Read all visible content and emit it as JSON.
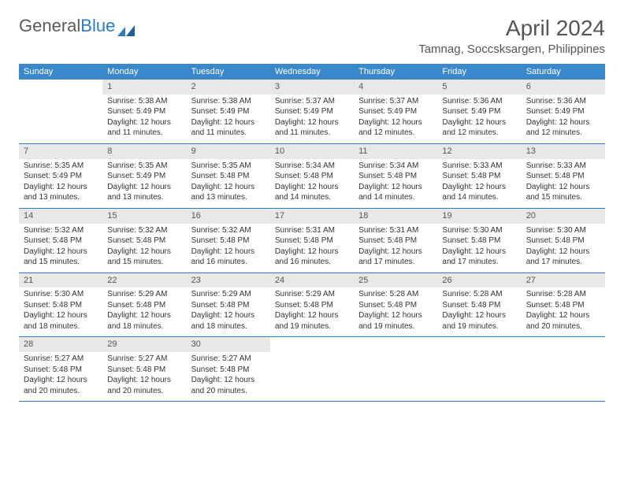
{
  "logo": {
    "text1": "General",
    "text2": "Blue"
  },
  "title": {
    "month": "April 2024",
    "location": "Tamnag, Soccsksargen, Philippines"
  },
  "colors": {
    "header_bg": "#3a88c9",
    "header_text": "#ffffff",
    "daynum_bg": "#e8e8e8",
    "week_border": "#2a7bbf",
    "logo_gray": "#5a5a5a",
    "logo_blue": "#2a7bbf",
    "text": "#333333",
    "title_text": "#555555"
  },
  "weekdays": [
    "Sunday",
    "Monday",
    "Tuesday",
    "Wednesday",
    "Thursday",
    "Friday",
    "Saturday"
  ],
  "weeks": [
    [
      null,
      {
        "n": "1",
        "sr": "Sunrise: 5:38 AM",
        "ss": "Sunset: 5:49 PM",
        "d1": "Daylight: 12 hours",
        "d2": "and 11 minutes."
      },
      {
        "n": "2",
        "sr": "Sunrise: 5:38 AM",
        "ss": "Sunset: 5:49 PM",
        "d1": "Daylight: 12 hours",
        "d2": "and 11 minutes."
      },
      {
        "n": "3",
        "sr": "Sunrise: 5:37 AM",
        "ss": "Sunset: 5:49 PM",
        "d1": "Daylight: 12 hours",
        "d2": "and 11 minutes."
      },
      {
        "n": "4",
        "sr": "Sunrise: 5:37 AM",
        "ss": "Sunset: 5:49 PM",
        "d1": "Daylight: 12 hours",
        "d2": "and 12 minutes."
      },
      {
        "n": "5",
        "sr": "Sunrise: 5:36 AM",
        "ss": "Sunset: 5:49 PM",
        "d1": "Daylight: 12 hours",
        "d2": "and 12 minutes."
      },
      {
        "n": "6",
        "sr": "Sunrise: 5:36 AM",
        "ss": "Sunset: 5:49 PM",
        "d1": "Daylight: 12 hours",
        "d2": "and 12 minutes."
      }
    ],
    [
      {
        "n": "7",
        "sr": "Sunrise: 5:35 AM",
        "ss": "Sunset: 5:49 PM",
        "d1": "Daylight: 12 hours",
        "d2": "and 13 minutes."
      },
      {
        "n": "8",
        "sr": "Sunrise: 5:35 AM",
        "ss": "Sunset: 5:49 PM",
        "d1": "Daylight: 12 hours",
        "d2": "and 13 minutes."
      },
      {
        "n": "9",
        "sr": "Sunrise: 5:35 AM",
        "ss": "Sunset: 5:48 PM",
        "d1": "Daylight: 12 hours",
        "d2": "and 13 minutes."
      },
      {
        "n": "10",
        "sr": "Sunrise: 5:34 AM",
        "ss": "Sunset: 5:48 PM",
        "d1": "Daylight: 12 hours",
        "d2": "and 14 minutes."
      },
      {
        "n": "11",
        "sr": "Sunrise: 5:34 AM",
        "ss": "Sunset: 5:48 PM",
        "d1": "Daylight: 12 hours",
        "d2": "and 14 minutes."
      },
      {
        "n": "12",
        "sr": "Sunrise: 5:33 AM",
        "ss": "Sunset: 5:48 PM",
        "d1": "Daylight: 12 hours",
        "d2": "and 14 minutes."
      },
      {
        "n": "13",
        "sr": "Sunrise: 5:33 AM",
        "ss": "Sunset: 5:48 PM",
        "d1": "Daylight: 12 hours",
        "d2": "and 15 minutes."
      }
    ],
    [
      {
        "n": "14",
        "sr": "Sunrise: 5:32 AM",
        "ss": "Sunset: 5:48 PM",
        "d1": "Daylight: 12 hours",
        "d2": "and 15 minutes."
      },
      {
        "n": "15",
        "sr": "Sunrise: 5:32 AM",
        "ss": "Sunset: 5:48 PM",
        "d1": "Daylight: 12 hours",
        "d2": "and 15 minutes."
      },
      {
        "n": "16",
        "sr": "Sunrise: 5:32 AM",
        "ss": "Sunset: 5:48 PM",
        "d1": "Daylight: 12 hours",
        "d2": "and 16 minutes."
      },
      {
        "n": "17",
        "sr": "Sunrise: 5:31 AM",
        "ss": "Sunset: 5:48 PM",
        "d1": "Daylight: 12 hours",
        "d2": "and 16 minutes."
      },
      {
        "n": "18",
        "sr": "Sunrise: 5:31 AM",
        "ss": "Sunset: 5:48 PM",
        "d1": "Daylight: 12 hours",
        "d2": "and 17 minutes."
      },
      {
        "n": "19",
        "sr": "Sunrise: 5:30 AM",
        "ss": "Sunset: 5:48 PM",
        "d1": "Daylight: 12 hours",
        "d2": "and 17 minutes."
      },
      {
        "n": "20",
        "sr": "Sunrise: 5:30 AM",
        "ss": "Sunset: 5:48 PM",
        "d1": "Daylight: 12 hours",
        "d2": "and 17 minutes."
      }
    ],
    [
      {
        "n": "21",
        "sr": "Sunrise: 5:30 AM",
        "ss": "Sunset: 5:48 PM",
        "d1": "Daylight: 12 hours",
        "d2": "and 18 minutes."
      },
      {
        "n": "22",
        "sr": "Sunrise: 5:29 AM",
        "ss": "Sunset: 5:48 PM",
        "d1": "Daylight: 12 hours",
        "d2": "and 18 minutes."
      },
      {
        "n": "23",
        "sr": "Sunrise: 5:29 AM",
        "ss": "Sunset: 5:48 PM",
        "d1": "Daylight: 12 hours",
        "d2": "and 18 minutes."
      },
      {
        "n": "24",
        "sr": "Sunrise: 5:29 AM",
        "ss": "Sunset: 5:48 PM",
        "d1": "Daylight: 12 hours",
        "d2": "and 19 minutes."
      },
      {
        "n": "25",
        "sr": "Sunrise: 5:28 AM",
        "ss": "Sunset: 5:48 PM",
        "d1": "Daylight: 12 hours",
        "d2": "and 19 minutes."
      },
      {
        "n": "26",
        "sr": "Sunrise: 5:28 AM",
        "ss": "Sunset: 5:48 PM",
        "d1": "Daylight: 12 hours",
        "d2": "and 19 minutes."
      },
      {
        "n": "27",
        "sr": "Sunrise: 5:28 AM",
        "ss": "Sunset: 5:48 PM",
        "d1": "Daylight: 12 hours",
        "d2": "and 20 minutes."
      }
    ],
    [
      {
        "n": "28",
        "sr": "Sunrise: 5:27 AM",
        "ss": "Sunset: 5:48 PM",
        "d1": "Daylight: 12 hours",
        "d2": "and 20 minutes."
      },
      {
        "n": "29",
        "sr": "Sunrise: 5:27 AM",
        "ss": "Sunset: 5:48 PM",
        "d1": "Daylight: 12 hours",
        "d2": "and 20 minutes."
      },
      {
        "n": "30",
        "sr": "Sunrise: 5:27 AM",
        "ss": "Sunset: 5:48 PM",
        "d1": "Daylight: 12 hours",
        "d2": "and 20 minutes."
      },
      null,
      null,
      null,
      null
    ]
  ]
}
